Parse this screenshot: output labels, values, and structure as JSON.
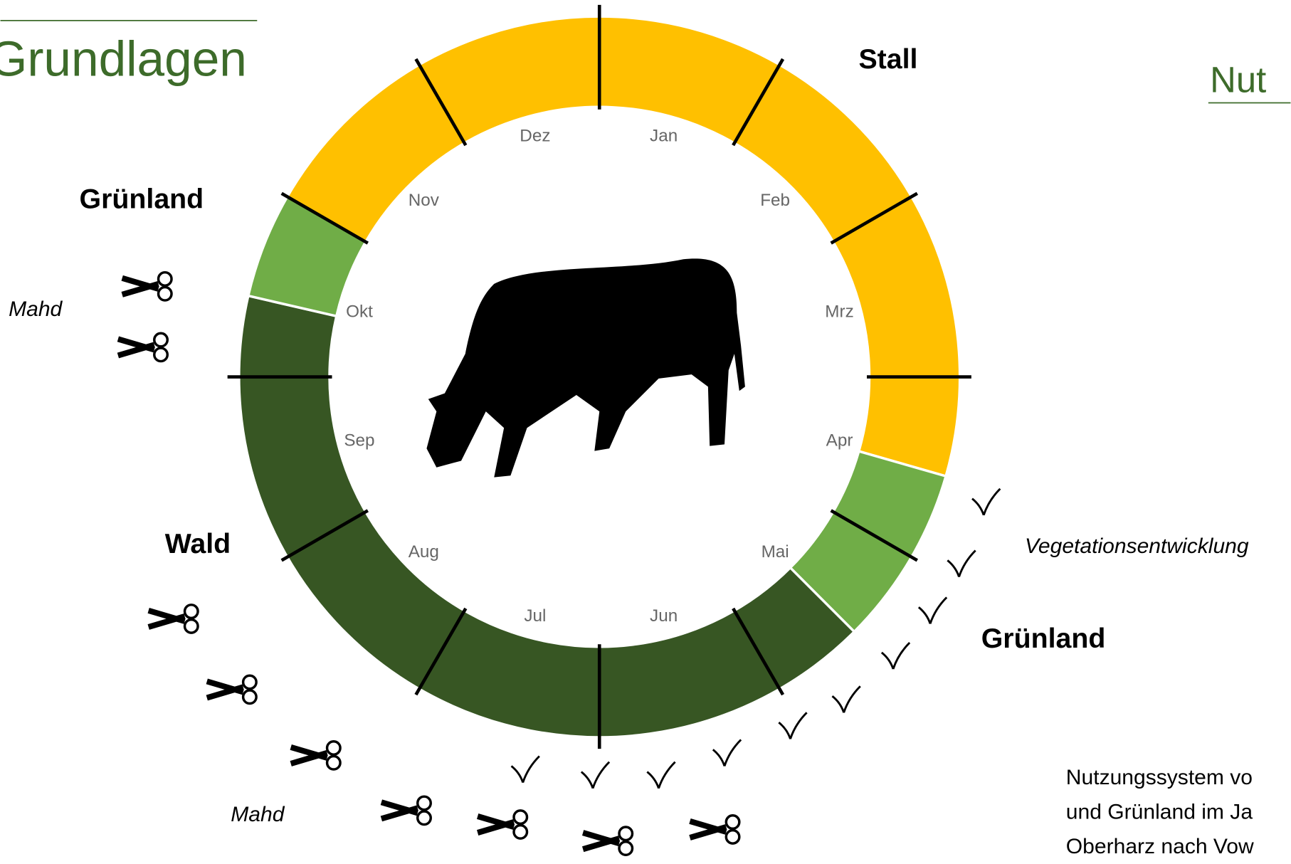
{
  "header": {
    "title": "Grundlagen",
    "right_title": "Nut"
  },
  "months": [
    "Jan",
    "Feb",
    "Mrz",
    "Apr",
    "Mai",
    "Jun",
    "Jul",
    "Aug",
    "Sep",
    "Okt",
    "Nov",
    "Dez"
  ],
  "labels": {
    "stall": "Stall",
    "gruenland_left": "Grünland",
    "mahd_top": "Mahd",
    "wald": "Wald",
    "mahd_bottom": "Mahd",
    "gruenland_right": "Grünland",
    "vegetation": "Vegetationsentwicklung"
  },
  "caption": [
    "Nutzungssystem vo",
    "und Grünland im Ja",
    "Oberharz nach Vow"
  ]
}
